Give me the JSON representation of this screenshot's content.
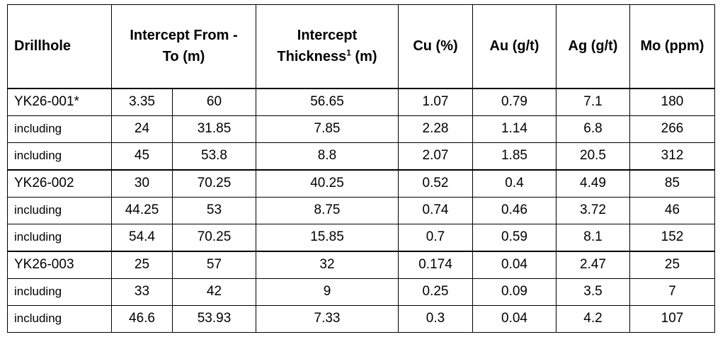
{
  "headers": {
    "drillhole": "Drillhole",
    "intercept_from_to_line1": "Intercept From -",
    "intercept_from_to_line2": "To (m)",
    "thickness_line1": "Intercept",
    "thickness_line2a": "Thickness",
    "thickness_sup": "1",
    "thickness_line2b": " (m)",
    "cu": "Cu (%)",
    "au": "Au (g/t)",
    "ag": "Ag (g/t)",
    "mo": "Mo (ppm)"
  },
  "rows": [
    {
      "hole": "YK26-001*",
      "from": "3.35",
      "to": "60",
      "thickness": "56.65",
      "cu": "1.07",
      "au": "0.79",
      "ag": "7.1",
      "mo": "180"
    },
    {
      "hole": "including",
      "from": "24",
      "to": "31.85",
      "thickness": "7.85",
      "cu": "2.28",
      "au": "1.14",
      "ag": "6.8",
      "mo": "266"
    },
    {
      "hole": "including",
      "from": "45",
      "to": "53.8",
      "thickness": "8.8",
      "cu": "2.07",
      "au": "1.85",
      "ag": "20.5",
      "mo": "312"
    },
    {
      "hole": "YK26-002",
      "from": "30",
      "to": "70.25",
      "thickness": "40.25",
      "cu": "0.52",
      "au": "0.4",
      "ag": "4.49",
      "mo": "85"
    },
    {
      "hole": "including",
      "from": "44.25",
      "to": "53",
      "thickness": "8.75",
      "cu": "0.74",
      "au": "0.46",
      "ag": "3.72",
      "mo": "46"
    },
    {
      "hole": "including",
      "from": "54.4",
      "to": "70.25",
      "thickness": "15.85",
      "cu": "0.7",
      "au": "0.59",
      "ag": "8.1",
      "mo": "152"
    },
    {
      "hole": "YK26-003",
      "from": "25",
      "to": "57",
      "thickness": "32",
      "cu": "0.174",
      "au": "0.04",
      "ag": "2.47",
      "mo": "25"
    },
    {
      "hole": "including",
      "from": "33",
      "to": "42",
      "thickness": "9",
      "cu": "0.25",
      "au": "0.09",
      "ag": "3.5",
      "mo": "7"
    },
    {
      "hole": "including",
      "from": "46.6",
      "to": "53.93",
      "thickness": "7.33",
      "cu": "0.3",
      "au": "0.04",
      "ag": "4.2",
      "mo": "107"
    }
  ]
}
